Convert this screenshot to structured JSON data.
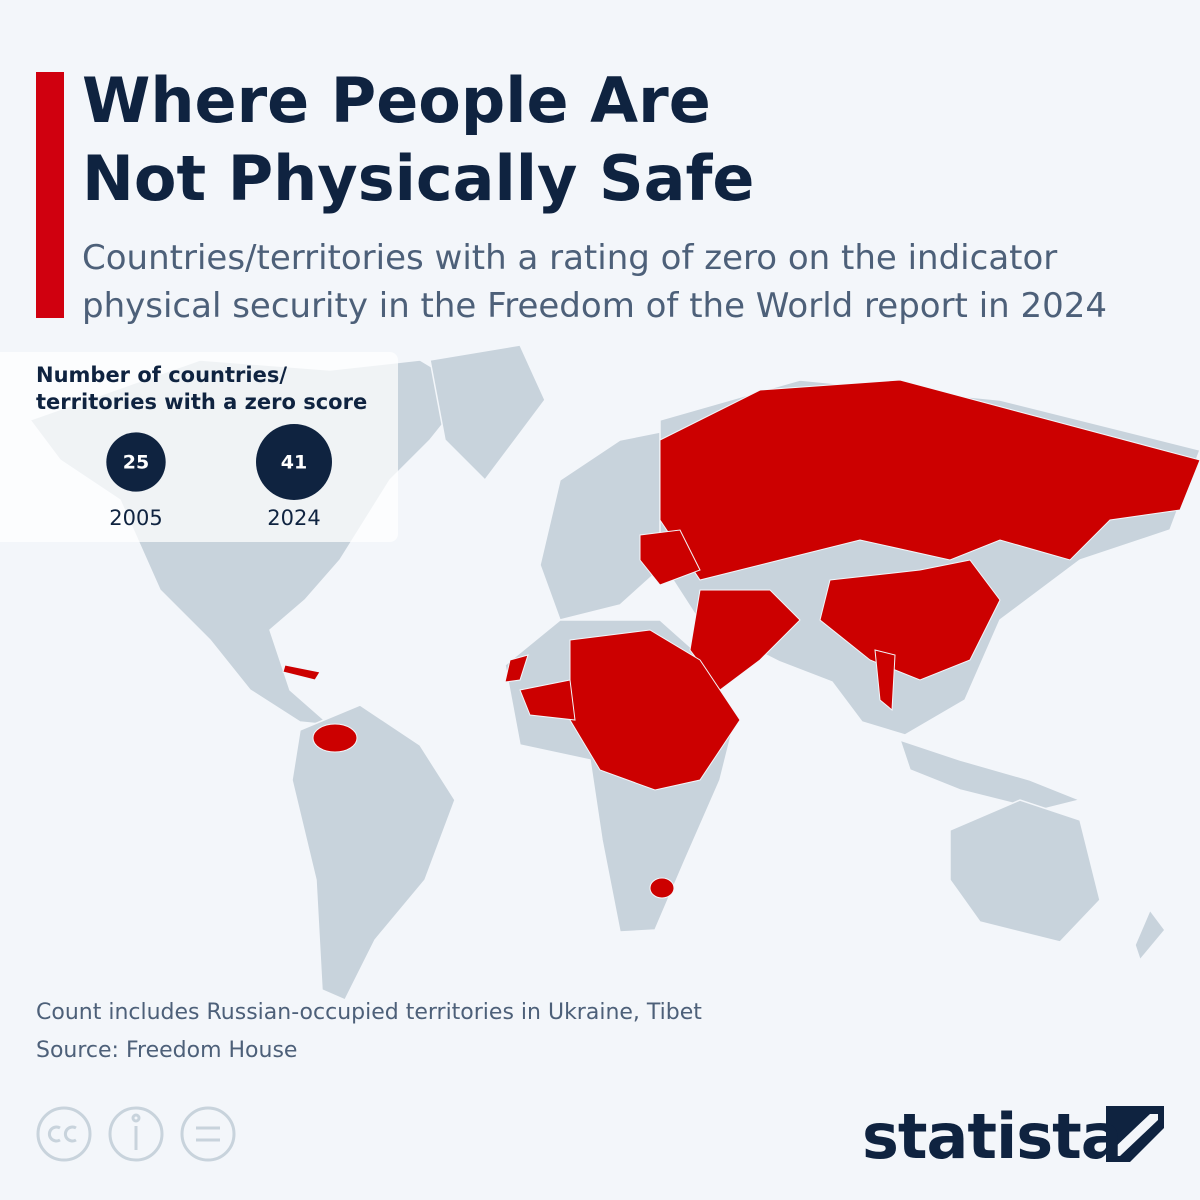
{
  "header": {
    "title": "Where People Are Not Physically Safe",
    "subtitle": "Countries/territories with a rating of zero on the indicator physical security in the Freedom of the World report in 2024"
  },
  "inset": {
    "heading": "Number of countries/ territories with a zero score",
    "counts": [
      {
        "value": 25,
        "year": "2005"
      },
      {
        "value": 41,
        "year": "2024"
      }
    ]
  },
  "footer": {
    "note": "Count includes Russian-occupied territories in Ukraine, Tibet",
    "source": "Source: Freedom House",
    "brand": "statista"
  }
}
